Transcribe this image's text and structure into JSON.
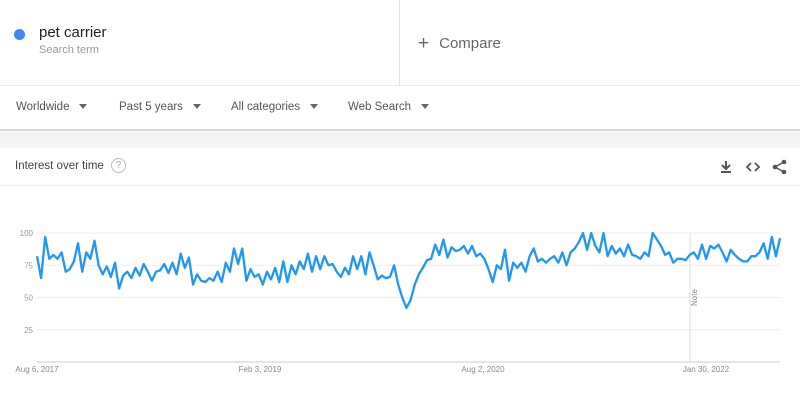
{
  "search_term": {
    "name": "pet carrier",
    "subtitle": "Search term",
    "color": "#4285f4"
  },
  "compare": {
    "icon": "plus-icon",
    "label": "Compare"
  },
  "filters": [
    {
      "label": "Worldwide"
    },
    {
      "label": "Past 5 years"
    },
    {
      "label": "All categories"
    },
    {
      "label": "Web Search"
    }
  ],
  "card": {
    "title": "Interest over time",
    "help_icon": "?",
    "actions": [
      "download-icon",
      "embed-icon",
      "share-icon"
    ]
  },
  "chart_data": {
    "type": "line",
    "title": "",
    "xlabel": "",
    "ylabel": "",
    "ylim": [
      0,
      100
    ],
    "yticks": [
      "25",
      "50",
      "75",
      "100"
    ],
    "xticks": [
      "Aug 6, 2017",
      "Feb 3, 2019",
      "Aug 2, 2020",
      "Jan 30, 2022"
    ],
    "annotation": "Note",
    "grid": true,
    "color": "#2196f3",
    "x_range": [
      "Aug 6, 2017",
      "Aug 2022"
    ],
    "values": [
      82,
      65,
      97,
      80,
      83,
      80,
      85,
      70,
      72,
      78,
      92,
      70,
      85,
      80,
      94,
      75,
      68,
      74,
      66,
      77,
      57,
      67,
      70,
      65,
      73,
      67,
      76,
      70,
      63,
      70,
      71,
      76,
      69,
      77,
      68,
      84,
      73,
      81,
      60,
      68,
      63,
      62,
      65,
      63,
      70,
      62,
      77,
      70,
      88,
      76,
      88,
      63,
      72,
      66,
      68,
      60,
      70,
      64,
      73,
      62,
      78,
      62,
      75,
      68,
      78,
      72,
      84,
      70,
      82,
      72,
      82,
      75,
      76,
      70,
      66,
      73,
      68,
      82,
      72,
      82,
      68,
      85,
      75,
      64,
      67,
      65,
      66,
      75,
      60,
      50,
      42,
      48,
      60,
      68,
      73,
      79,
      80,
      91,
      83,
      95,
      81,
      89,
      86,
      87,
      90,
      84,
      90,
      82,
      84,
      80,
      72,
      62,
      75,
      72,
      87,
      63,
      77,
      73,
      77,
      70,
      82,
      88,
      78,
      80,
      77,
      80,
      82,
      77,
      85,
      75,
      85,
      88,
      93,
      100,
      87,
      100,
      90,
      85,
      100,
      82,
      90,
      84,
      88,
      82,
      91,
      83,
      82,
      80,
      85,
      82,
      100,
      95,
      90,
      83,
      85,
      77,
      80,
      80,
      79,
      83,
      85,
      80,
      91,
      80,
      90,
      88,
      91,
      85,
      78,
      87,
      83,
      80,
      78,
      78,
      82,
      82,
      85,
      92,
      80,
      97,
      82,
      96
    ]
  }
}
